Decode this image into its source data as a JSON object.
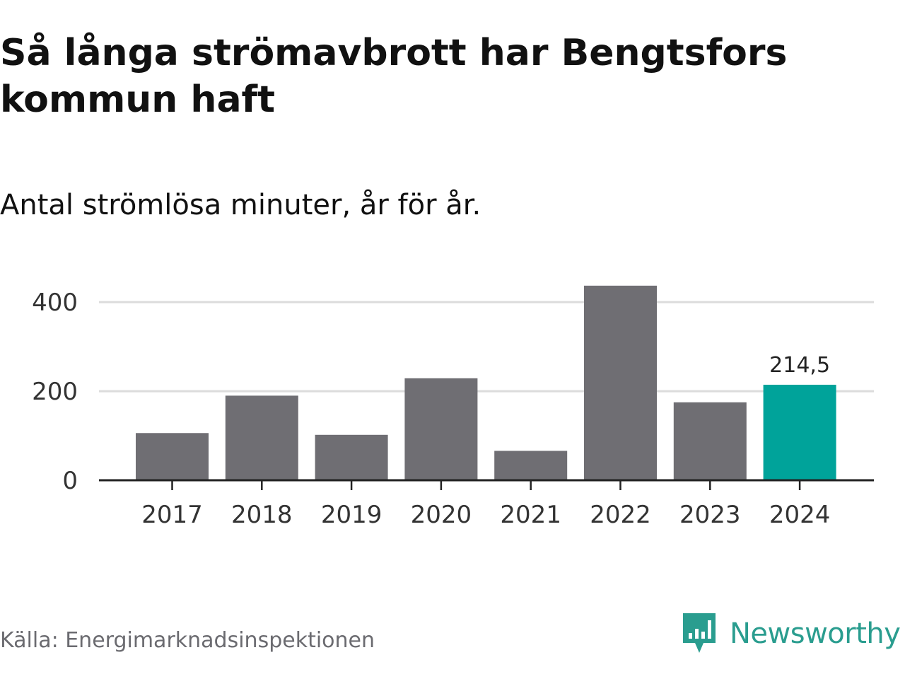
{
  "chart_data": {
    "type": "bar",
    "title": "Så långa strömavbrott har Bengtsfors kommun haft",
    "subtitle": "Antal strömlösa minuter, år för år.",
    "xlabel": "",
    "ylabel": "",
    "categories": [
      "2017",
      "2018",
      "2019",
      "2020",
      "2021",
      "2022",
      "2023",
      "2024"
    ],
    "values": [
      106,
      190,
      102,
      229,
      66,
      437,
      175,
      214.5
    ],
    "ylim": [
      0,
      440
    ],
    "yticks": [
      0,
      200,
      400
    ],
    "ytick_labels": [
      "0",
      "200",
      "400"
    ],
    "grid": true,
    "bar_color": "#6f6e73",
    "highlight_color": "#00a39a",
    "highlight_index": 7,
    "data_labels": [
      {
        "index": 7,
        "text": "214,5"
      }
    ]
  },
  "source": "Källa: Energimarknadsinspektionen",
  "brand": {
    "name": "Newsworthy",
    "color": "#2a9d8f"
  }
}
